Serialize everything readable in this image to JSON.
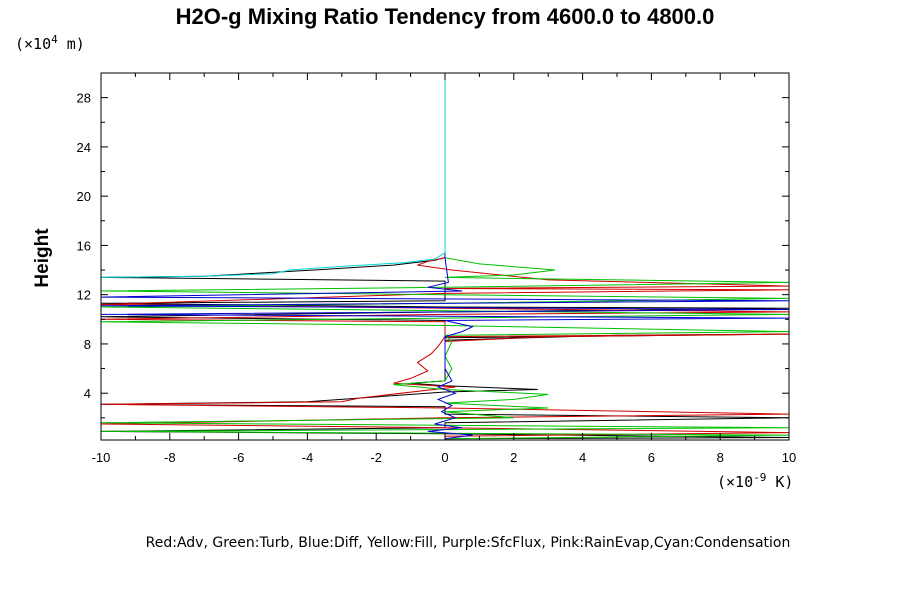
{
  "chart_data": {
    "type": "line",
    "title": "H2O-g Mixing Ratio Tendency from 4600.0 to 4800.0",
    "ylabel": "Height",
    "y_unit_prefix": "(×10",
    "y_unit_exp": "4",
    "y_unit_suffix": " m)",
    "x_unit_prefix": "(×10",
    "x_unit_exp": "-9",
    "x_unit_suffix": " K)",
    "xlim": [
      -10,
      10
    ],
    "ylim": [
      0.2,
      30
    ],
    "x_ticks": [
      "-10",
      "-8",
      "-6",
      "-4",
      "-2",
      "0",
      "2",
      "4",
      "6",
      "8",
      "10"
    ],
    "y_ticks": [
      "4",
      "8",
      "12",
      "16",
      "20",
      "24",
      "28"
    ],
    "grid": false,
    "legend_text": "Red:Adv, Green:Turb, Blue:Diff, Yellow:Fill, Purple:SfcFlux, Pink:RainEvap,Cyan:Condensation",
    "legend_position": "bottom",
    "series": [
      {
        "name": "Black",
        "color": "#000000",
        "points": [
          [
            0,
            30
          ],
          [
            0,
            15
          ],
          [
            -0.3,
            14.8
          ],
          [
            -1.5,
            14.4
          ],
          [
            -3.8,
            14.0
          ],
          [
            -7,
            13.5
          ],
          [
            -10,
            13.4
          ],
          [
            0,
            13.1
          ],
          [
            0,
            11.5
          ],
          [
            -10,
            11.3
          ],
          [
            0,
            11.0
          ],
          [
            10,
            10.9
          ],
          [
            0,
            10.6
          ],
          [
            -10,
            10.2
          ],
          [
            0,
            9.9
          ],
          [
            0,
            8.3
          ],
          [
            5,
            8.7
          ],
          [
            10,
            8.8
          ],
          [
            0,
            8.5
          ],
          [
            0,
            5.0
          ],
          [
            -1,
            4.8
          ],
          [
            0,
            4.6
          ],
          [
            2.7,
            4.3
          ],
          [
            0,
            4.1
          ],
          [
            -2.5,
            3.6
          ],
          [
            -4,
            3.3
          ],
          [
            -10,
            3.1
          ],
          [
            0,
            2.9
          ],
          [
            0,
            2.3
          ],
          [
            10,
            2.0
          ],
          [
            0,
            1.6
          ],
          [
            0,
            1.2
          ],
          [
            -10,
            0.9
          ],
          [
            0,
            0.7
          ],
          [
            10,
            0.4
          ],
          [
            0,
            0.3
          ]
        ]
      },
      {
        "name": "Red:Adv",
        "color": "#d00000",
        "points": [
          [
            0,
            30
          ],
          [
            0,
            15
          ],
          [
            -0.5,
            14.7
          ],
          [
            -0.8,
            14.4
          ],
          [
            0.2,
            14.0
          ],
          [
            3,
            13.2
          ],
          [
            10,
            12.7
          ],
          [
            0,
            12.5
          ],
          [
            10,
            12.4
          ],
          [
            0,
            12.1
          ],
          [
            -10,
            11.2
          ],
          [
            0,
            10.9
          ],
          [
            10,
            10.6
          ],
          [
            0,
            10.4
          ],
          [
            -10,
            10.0
          ],
          [
            0,
            9.8
          ],
          [
            0,
            8.2
          ],
          [
            3,
            8.6
          ],
          [
            10,
            8.8
          ],
          [
            0,
            8.6
          ],
          [
            -0.2,
            7.8
          ],
          [
            -0.4,
            7.2
          ],
          [
            -0.8,
            6.5
          ],
          [
            -0.5,
            5.8
          ],
          [
            -1,
            5.2
          ],
          [
            -1.5,
            4.8
          ],
          [
            0.3,
            4.5
          ],
          [
            -2.5,
            3.6
          ],
          [
            -3,
            3.3
          ],
          [
            -10,
            3.1
          ],
          [
            0,
            2.8
          ],
          [
            10,
            2.3
          ],
          [
            0,
            2.0
          ],
          [
            -10,
            1.5
          ],
          [
            0,
            1.2
          ],
          [
            10,
            0.8
          ],
          [
            0,
            0.5
          ]
        ]
      },
      {
        "name": "Green:Turb",
        "color": "#00c000",
        "points": [
          [
            0,
            30
          ],
          [
            0,
            15
          ],
          [
            1,
            14.5
          ],
          [
            3.2,
            14.0
          ],
          [
            2,
            13.6
          ],
          [
            0,
            13.4
          ],
          [
            10,
            13.0
          ],
          [
            0,
            12.6
          ],
          [
            -10,
            12.3
          ],
          [
            0,
            12.0
          ],
          [
            10,
            11.7
          ],
          [
            0,
            11.3
          ],
          [
            -10,
            11.0
          ],
          [
            0,
            10.7
          ],
          [
            10,
            10.4
          ],
          [
            0,
            10.1
          ],
          [
            -10,
            9.8
          ],
          [
            0,
            9.5
          ],
          [
            10,
            9.0
          ],
          [
            0,
            8.7
          ],
          [
            0.2,
            8.2
          ],
          [
            0,
            7.0
          ],
          [
            0.2,
            6.0
          ],
          [
            0,
            5.0
          ],
          [
            -1.5,
            4.7
          ],
          [
            0,
            4.3
          ],
          [
            3,
            3.9
          ],
          [
            2,
            3.5
          ],
          [
            0,
            3.2
          ],
          [
            3,
            2.8
          ],
          [
            0,
            2.5
          ],
          [
            2,
            2.0
          ],
          [
            -10,
            1.6
          ],
          [
            10,
            1.2
          ],
          [
            -10,
            0.9
          ],
          [
            10,
            0.6
          ],
          [
            0,
            0.3
          ]
        ]
      },
      {
        "name": "Blue:Diff",
        "color": "#0000d0",
        "points": [
          [
            0,
            30
          ],
          [
            0,
            15
          ],
          [
            0.1,
            13.0
          ],
          [
            -0.5,
            12.6
          ],
          [
            0.5,
            12.3
          ],
          [
            -10,
            11.8
          ],
          [
            10,
            11.5
          ],
          [
            -10,
            11.1
          ],
          [
            10,
            10.8
          ],
          [
            -10,
            10.4
          ],
          [
            10,
            10.1
          ],
          [
            0,
            9.9
          ],
          [
            0.8,
            9.4
          ],
          [
            0.5,
            9.0
          ],
          [
            0,
            8.6
          ],
          [
            0,
            6.0
          ],
          [
            0.2,
            5.0
          ],
          [
            -0.2,
            4.5
          ],
          [
            0.3,
            4.0
          ],
          [
            -0.2,
            3.5
          ],
          [
            0.2,
            3.0
          ],
          [
            -0.1,
            2.5
          ],
          [
            0.3,
            2.0
          ],
          [
            -0.3,
            1.5
          ],
          [
            0.5,
            1.2
          ],
          [
            -0.5,
            0.9
          ],
          [
            0.8,
            0.6
          ],
          [
            0,
            0.3
          ]
        ]
      },
      {
        "name": "Cyan:Condensation",
        "color": "#00d8d8",
        "points": [
          [
            0,
            30
          ],
          [
            0,
            15.4
          ],
          [
            -0.3,
            14.9
          ],
          [
            -1.2,
            14.6
          ],
          [
            -3,
            14.3
          ],
          [
            -4.5,
            14.0
          ],
          [
            -5,
            13.7
          ],
          [
            -7,
            13.5
          ],
          [
            -10,
            13.4
          ]
        ]
      }
    ]
  }
}
